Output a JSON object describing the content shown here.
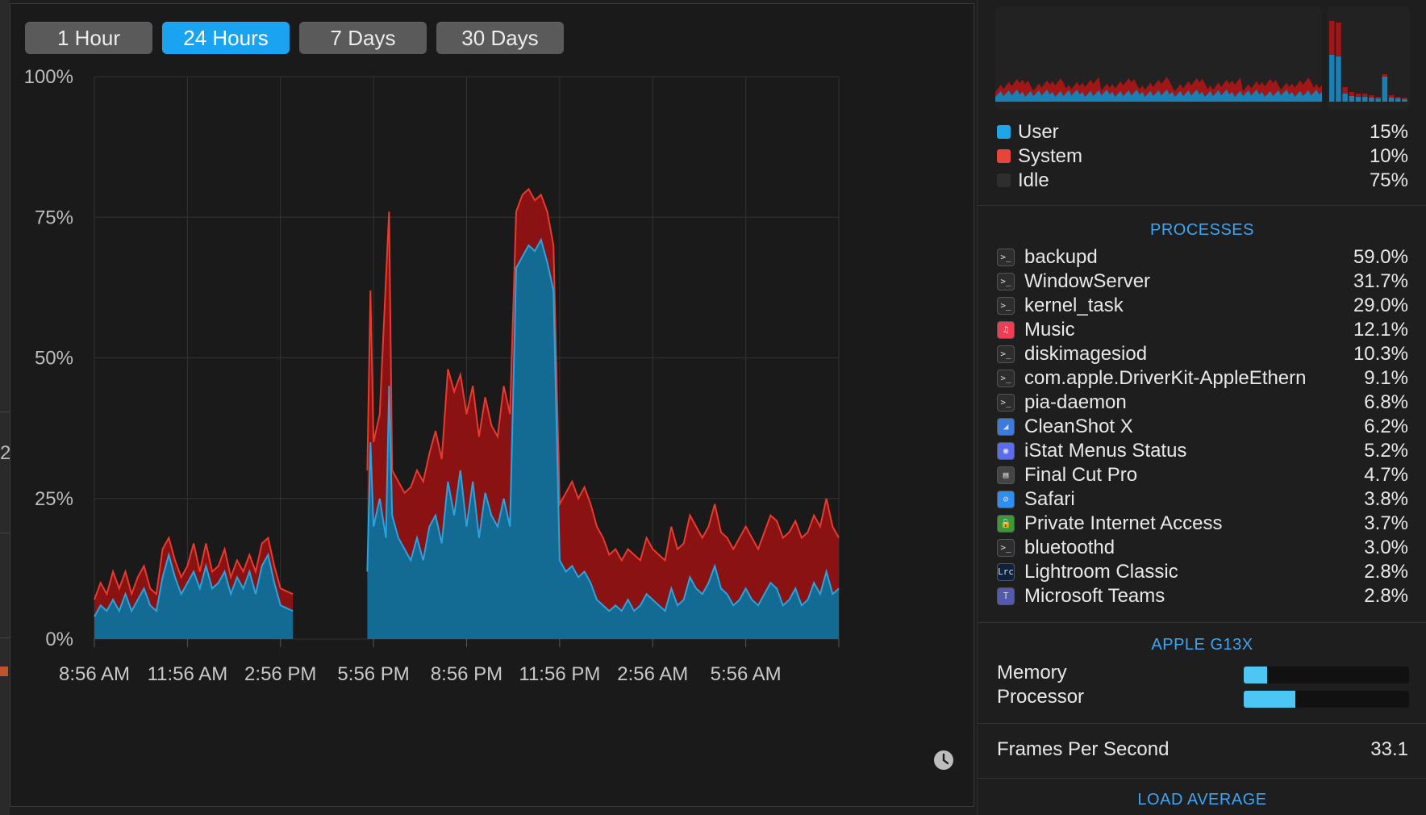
{
  "range_buttons": [
    {
      "label": "1 Hour",
      "active": false
    },
    {
      "label": "24 Hours",
      "active": true
    },
    {
      "label": "7 Days",
      "active": false
    },
    {
      "label": "30 Days",
      "active": false
    }
  ],
  "chart_data": {
    "type": "area",
    "y_ticks": [
      "100%",
      "75%",
      "50%",
      "25%",
      "0%"
    ],
    "ylim": [
      0,
      100
    ],
    "x_ticks": [
      "8:56 AM",
      "11:56 AM",
      "2:56 PM",
      "5:56 PM",
      "8:56 PM",
      "11:56 PM",
      "2:56 AM",
      "5:56 AM"
    ],
    "xlim": [
      0,
      24
    ],
    "grid": true,
    "series": [
      {
        "name": "User",
        "color": "#136b94",
        "line_color": "#2ba3de",
        "points": [
          [
            0,
            4
          ],
          [
            0.2,
            6
          ],
          [
            0.4,
            5
          ],
          [
            0.6,
            7
          ],
          [
            0.8,
            5
          ],
          [
            1,
            8
          ],
          [
            1.2,
            5
          ],
          [
            1.4,
            7
          ],
          [
            1.6,
            9
          ],
          [
            1.8,
            6
          ],
          [
            2,
            5
          ],
          [
            2.2,
            11
          ],
          [
            2.4,
            15
          ],
          [
            2.6,
            11
          ],
          [
            2.8,
            8
          ],
          [
            3,
            10
          ],
          [
            3.2,
            12
          ],
          [
            3.4,
            9
          ],
          [
            3.6,
            13
          ],
          [
            3.8,
            9
          ],
          [
            4,
            10
          ],
          [
            4.2,
            12
          ],
          [
            4.4,
            8
          ],
          [
            4.6,
            11
          ],
          [
            4.8,
            9
          ],
          [
            5,
            12
          ],
          [
            5.2,
            8
          ],
          [
            5.4,
            13
          ],
          [
            5.6,
            15
          ],
          [
            5.8,
            10
          ],
          [
            6,
            6
          ],
          [
            6.4,
            5
          ],
          [
            6.4,
            null
          ],
          [
            8.8,
            null
          ],
          [
            8.8,
            12
          ],
          [
            8.9,
            35
          ],
          [
            9.0,
            20
          ],
          [
            9.2,
            25
          ],
          [
            9.4,
            18
          ],
          [
            9.5,
            45
          ],
          [
            9.6,
            22
          ],
          [
            9.8,
            18
          ],
          [
            10,
            16
          ],
          [
            10.2,
            14
          ],
          [
            10.4,
            18
          ],
          [
            10.6,
            14
          ],
          [
            10.8,
            20
          ],
          [
            11,
            22
          ],
          [
            11.2,
            17
          ],
          [
            11.4,
            28
          ],
          [
            11.6,
            22
          ],
          [
            11.8,
            30
          ],
          [
            12,
            20
          ],
          [
            12.2,
            28
          ],
          [
            12.4,
            18
          ],
          [
            12.6,
            26
          ],
          [
            12.8,
            22
          ],
          [
            13.0,
            20
          ],
          [
            13.2,
            25
          ],
          [
            13.4,
            20
          ],
          [
            13.6,
            66
          ],
          [
            13.8,
            68
          ],
          [
            14.0,
            70
          ],
          [
            14.2,
            69
          ],
          [
            14.4,
            71
          ],
          [
            14.6,
            67
          ],
          [
            14.8,
            62
          ],
          [
            15.0,
            14
          ],
          [
            15.2,
            12
          ],
          [
            15.4,
            13
          ],
          [
            15.6,
            11
          ],
          [
            15.8,
            12
          ],
          [
            16.0,
            10
          ],
          [
            16.2,
            7
          ],
          [
            16.4,
            6
          ],
          [
            16.6,
            5
          ],
          [
            16.8,
            6
          ],
          [
            17.0,
            5
          ],
          [
            17.2,
            7
          ],
          [
            17.4,
            5
          ],
          [
            17.6,
            6
          ],
          [
            17.8,
            8
          ],
          [
            18.0,
            7
          ],
          [
            18.2,
            6
          ],
          [
            18.4,
            5
          ],
          [
            18.6,
            9
          ],
          [
            18.8,
            6
          ],
          [
            19.0,
            7
          ],
          [
            19.2,
            11
          ],
          [
            19.4,
            9
          ],
          [
            19.6,
            8
          ],
          [
            19.8,
            10
          ],
          [
            20.0,
            13
          ],
          [
            20.2,
            9
          ],
          [
            20.4,
            8
          ],
          [
            20.6,
            6
          ],
          [
            20.8,
            7
          ],
          [
            21.0,
            9
          ],
          [
            21.2,
            7
          ],
          [
            21.4,
            6
          ],
          [
            21.6,
            8
          ],
          [
            21.8,
            10
          ],
          [
            22.0,
            9
          ],
          [
            22.2,
            6
          ],
          [
            22.4,
            7
          ],
          [
            22.6,
            9
          ],
          [
            22.8,
            6
          ],
          [
            23.0,
            7
          ],
          [
            23.2,
            10
          ],
          [
            23.4,
            8
          ],
          [
            23.6,
            12
          ],
          [
            23.8,
            8
          ],
          [
            24.0,
            9
          ]
        ]
      },
      {
        "name": "System",
        "color": "#8b1212",
        "line_color": "#e83a2e",
        "points": [
          [
            0,
            7
          ],
          [
            0.2,
            10
          ],
          [
            0.4,
            8
          ],
          [
            0.6,
            12
          ],
          [
            0.8,
            9
          ],
          [
            1,
            12
          ],
          [
            1.2,
            8
          ],
          [
            1.4,
            11
          ],
          [
            1.6,
            13
          ],
          [
            1.8,
            9
          ],
          [
            2,
            8
          ],
          [
            2.2,
            16
          ],
          [
            2.4,
            18
          ],
          [
            2.6,
            14
          ],
          [
            2.8,
            11
          ],
          [
            3,
            13
          ],
          [
            3.2,
            17
          ],
          [
            3.4,
            12
          ],
          [
            3.6,
            17
          ],
          [
            3.8,
            12
          ],
          [
            4,
            13
          ],
          [
            4.2,
            16
          ],
          [
            4.4,
            11
          ],
          [
            4.6,
            14
          ],
          [
            4.8,
            12
          ],
          [
            5,
            15
          ],
          [
            5.2,
            12
          ],
          [
            5.4,
            17
          ],
          [
            5.6,
            18
          ],
          [
            5.8,
            13
          ],
          [
            6,
            9
          ],
          [
            6.4,
            8
          ],
          [
            6.4,
            null
          ],
          [
            8.8,
            null
          ],
          [
            8.8,
            30
          ],
          [
            8.9,
            62
          ],
          [
            9.0,
            35
          ],
          [
            9.2,
            40
          ],
          [
            9.4,
            64
          ],
          [
            9.5,
            76
          ],
          [
            9.6,
            30
          ],
          [
            9.8,
            28
          ],
          [
            10,
            26
          ],
          [
            10.2,
            27
          ],
          [
            10.4,
            30
          ],
          [
            10.6,
            28
          ],
          [
            10.8,
            33
          ],
          [
            11,
            37
          ],
          [
            11.2,
            32
          ],
          [
            11.4,
            48
          ],
          [
            11.6,
            44
          ],
          [
            11.8,
            47
          ],
          [
            12,
            40
          ],
          [
            12.2,
            45
          ],
          [
            12.4,
            36
          ],
          [
            12.6,
            43
          ],
          [
            12.8,
            38
          ],
          [
            13.0,
            36
          ],
          [
            13.2,
            45
          ],
          [
            13.4,
            40
          ],
          [
            13.6,
            76
          ],
          [
            13.8,
            79
          ],
          [
            14.0,
            80
          ],
          [
            14.2,
            78
          ],
          [
            14.4,
            79
          ],
          [
            14.6,
            76
          ],
          [
            14.8,
            70
          ],
          [
            15.0,
            24
          ],
          [
            15.2,
            26
          ],
          [
            15.4,
            28
          ],
          [
            15.6,
            25
          ],
          [
            15.8,
            27
          ],
          [
            16.0,
            24
          ],
          [
            16.2,
            20
          ],
          [
            16.4,
            18
          ],
          [
            16.6,
            15
          ],
          [
            16.8,
            16
          ],
          [
            17.0,
            14
          ],
          [
            17.2,
            16
          ],
          [
            17.4,
            15
          ],
          [
            17.6,
            14
          ],
          [
            17.8,
            18
          ],
          [
            18.0,
            16
          ],
          [
            18.2,
            15
          ],
          [
            18.4,
            14
          ],
          [
            18.6,
            20
          ],
          [
            18.8,
            16
          ],
          [
            19.0,
            17
          ],
          [
            19.2,
            22
          ],
          [
            19.4,
            20
          ],
          [
            19.6,
            18
          ],
          [
            19.8,
            20
          ],
          [
            20.0,
            24
          ],
          [
            20.2,
            19
          ],
          [
            20.4,
            18
          ],
          [
            20.6,
            16
          ],
          [
            20.8,
            18
          ],
          [
            21.0,
            20
          ],
          [
            21.2,
            18
          ],
          [
            21.4,
            16
          ],
          [
            21.6,
            19
          ],
          [
            21.8,
            22
          ],
          [
            22.0,
            21
          ],
          [
            22.2,
            18
          ],
          [
            22.4,
            19
          ],
          [
            22.6,
            21
          ],
          [
            22.8,
            18
          ],
          [
            23.0,
            19
          ],
          [
            23.2,
            22
          ],
          [
            23.4,
            20
          ],
          [
            23.6,
            25
          ],
          [
            23.8,
            20
          ],
          [
            24.0,
            18
          ]
        ]
      }
    ]
  },
  "legend": [
    {
      "label": "User",
      "value": "15%",
      "color": "#1fa6e8"
    },
    {
      "label": "System",
      "value": "10%",
      "color": "#e8453a"
    },
    {
      "label": "Idle",
      "value": "75%",
      "color": "#2e2e2e"
    }
  ],
  "processes_title": "PROCESSES",
  "processes": [
    {
      "name": "backupd",
      "pct": "59.0%",
      "icon": "terminal-icon",
      "icon_text": ">_",
      "icon_bg": "#2d2d2d"
    },
    {
      "name": "WindowServer",
      "pct": "31.7%",
      "icon": "terminal-icon",
      "icon_text": ">_",
      "icon_bg": "#2d2d2d"
    },
    {
      "name": "kernel_task",
      "pct": "29.0%",
      "icon": "terminal-icon",
      "icon_text": ">_",
      "icon_bg": "#2d2d2d"
    },
    {
      "name": "Music",
      "pct": "12.1%",
      "icon": "music-icon",
      "icon_text": "♫",
      "icon_bg": "#f23b55"
    },
    {
      "name": "diskimagesiod",
      "pct": "10.3%",
      "icon": "terminal-icon",
      "icon_text": ">_",
      "icon_bg": "#2d2d2d"
    },
    {
      "name": "com.apple.DriverKit-AppleEthern",
      "pct": "9.1%",
      "icon": "terminal-icon",
      "icon_text": ">_",
      "icon_bg": "#2d2d2d"
    },
    {
      "name": "pia-daemon",
      "pct": "6.8%",
      "icon": "terminal-icon",
      "icon_text": ">_",
      "icon_bg": "#2d2d2d"
    },
    {
      "name": "CleanShot X",
      "pct": "6.2%",
      "icon": "cleanshot-icon",
      "icon_text": "◢",
      "icon_bg": "#3b7be0"
    },
    {
      "name": "iStat Menus Status",
      "pct": "5.2%",
      "icon": "istat-icon",
      "icon_text": "◉",
      "icon_bg": "#5a6cf0"
    },
    {
      "name": "Final Cut Pro",
      "pct": "4.7%",
      "icon": "clapper-icon",
      "icon_text": "▤",
      "icon_bg": "#444"
    },
    {
      "name": "Safari",
      "pct": "3.8%",
      "icon": "compass-icon",
      "icon_text": "⊘",
      "icon_bg": "#2f8ff0"
    },
    {
      "name": "Private Internet Access",
      "pct": "3.7%",
      "icon": "lock-icon",
      "icon_text": "🔒",
      "icon_bg": "#3a9a3a"
    },
    {
      "name": "bluetoothd",
      "pct": "3.0%",
      "icon": "terminal-icon",
      "icon_text": ">_",
      "icon_bg": "#2d2d2d"
    },
    {
      "name": "Lightroom Classic",
      "pct": "2.8%",
      "icon": "lightroom-icon",
      "icon_text": "Lrc",
      "icon_bg": "#0e2240"
    },
    {
      "name": "Microsoft Teams",
      "pct": "2.8%",
      "icon": "teams-icon",
      "icon_text": "T",
      "icon_bg": "#5558af"
    }
  ],
  "gpu_title": "APPLE G13X",
  "gpu": [
    {
      "label": "Memory",
      "fraction": 0.14
    },
    {
      "label": "Processor",
      "fraction": 0.31
    }
  ],
  "fps": {
    "label": "Frames Per Second",
    "value": "33.1"
  },
  "load_title": "LOAD AVERAGE",
  "colors": {
    "accent": "#1aa3f0",
    "user": "#136b94",
    "system": "#8b1212"
  }
}
